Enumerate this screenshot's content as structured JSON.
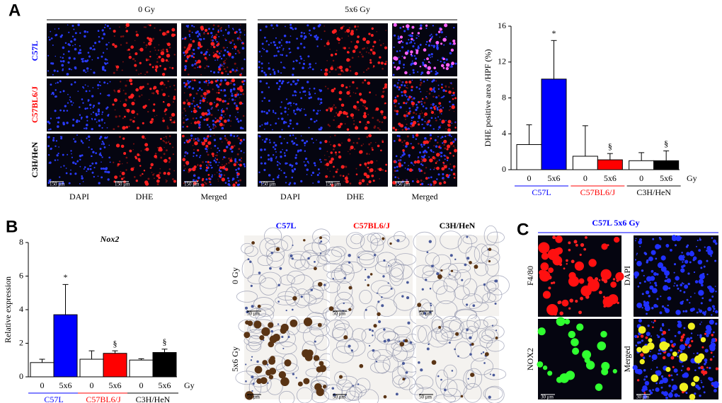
{
  "panel_labels": [
    "A",
    "B",
    "C"
  ],
  "panel_a": {
    "conditions": [
      "0 Gy",
      "5x6 Gy"
    ],
    "strains": [
      "C57L",
      "C57BL6/J",
      "C3H/HeN"
    ],
    "stains": [
      "DAPI",
      "DHE",
      "Merged"
    ],
    "scale_bar": "150 μm"
  },
  "panel_b": {
    "strains": [
      "C57L",
      "C57BL6/J",
      "C3H/HeN"
    ],
    "doses": [
      "0 Gy",
      "5x6 Gy"
    ],
    "scale_bar": "50 μm"
  },
  "panel_c": {
    "title": "C57L 5x6 Gy",
    "stains": [
      "F4/80",
      "DAPI",
      "NOX2",
      "Merged"
    ],
    "scale_bar": "30 μm"
  },
  "chart_data": [
    {
      "type": "bar",
      "y_label": "DHE  positive  area /HPF (%)",
      "categories": [
        "0",
        "5x6",
        "0",
        "5x6",
        "0",
        "5x6"
      ],
      "values": [
        2.8,
        10.1,
        1.5,
        1.1,
        1.0,
        1.0
      ],
      "errors": [
        2.2,
        4.3,
        3.4,
        0.7,
        0.9,
        1.1
      ],
      "colors": [
        "#ffffff",
        "#0000ff",
        "#ffffff",
        "#ff0000",
        "#ffffff",
        "#000000"
      ],
      "annotations": [
        null,
        "*",
        null,
        "§",
        null,
        "§"
      ],
      "groups": [
        {
          "name": "C57L",
          "color": "#0000ff"
        },
        {
          "name": "C57BL6/J",
          "color": "#ff0000"
        },
        {
          "name": "C3H/HeN",
          "color": "#000000"
        }
      ],
      "unit": "Gy",
      "ylim": [
        0,
        16
      ],
      "yticks": [
        0,
        4,
        8,
        12,
        16
      ]
    },
    {
      "type": "bar",
      "title": "Nox2",
      "y_label": "Relative expression",
      "categories": [
        "0",
        "5x6",
        "0",
        "5x6",
        "0",
        "5x6"
      ],
      "values": [
        0.85,
        3.7,
        1.05,
        1.4,
        1.0,
        1.45
      ],
      "errors": [
        0.2,
        1.8,
        0.5,
        0.15,
        0.08,
        0.2
      ],
      "colors": [
        "#ffffff",
        "#0000ff",
        "#ffffff",
        "#ff0000",
        "#ffffff",
        "#000000"
      ],
      "annotations": [
        null,
        "*",
        null,
        "§",
        null,
        "§"
      ],
      "groups": [
        {
          "name": "C57L",
          "color": "#0000ff"
        },
        {
          "name": "C57BL6/J",
          "color": "#ff0000"
        },
        {
          "name": "C3H/HeN",
          "color": "#000000"
        }
      ],
      "unit": "Gy",
      "ylim": [
        0,
        8
      ],
      "yticks": [
        0,
        2,
        4,
        6,
        8
      ]
    }
  ]
}
